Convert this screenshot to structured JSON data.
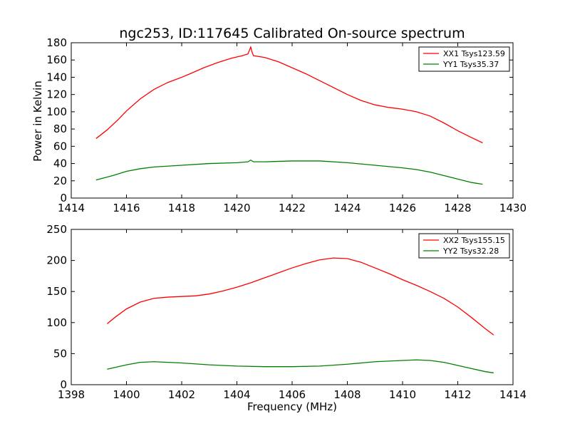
{
  "figure": {
    "title": "ngc253, ID:117645 Calibrated On-source spectrum",
    "ylabel": "Power in Kelvin",
    "xlabel": "Frequency (MHz)"
  },
  "colors": {
    "XX": "#ff0000",
    "YY": "#008000",
    "axis": "#000000"
  },
  "chart_data": [
    {
      "type": "line",
      "title": "ngc253, ID:117645 Calibrated On-source spectrum",
      "xlabel": "",
      "ylabel": "Power in Kelvin",
      "xlim": [
        1414,
        1430
      ],
      "ylim": [
        0,
        180
      ],
      "xticks": [
        1414,
        1416,
        1418,
        1420,
        1422,
        1424,
        1426,
        1428,
        1430
      ],
      "yticks": [
        0,
        20,
        40,
        60,
        80,
        100,
        120,
        140,
        160,
        180
      ],
      "grid": false,
      "legend": "top-right",
      "series": [
        {
          "name": "XX1 Tsys123.59",
          "color": "#ff0000",
          "x": [
            1414.9,
            1415.3,
            1415.7,
            1416.0,
            1416.5,
            1417.0,
            1417.5,
            1418.0,
            1418.3,
            1418.8,
            1419.3,
            1419.8,
            1420.2,
            1420.4,
            1420.5,
            1420.55,
            1420.6,
            1421.0,
            1421.5,
            1422.0,
            1422.5,
            1423.0,
            1423.5,
            1424.0,
            1424.5,
            1425.0,
            1425.5,
            1426.0,
            1426.5,
            1427.0,
            1427.5,
            1428.0,
            1428.5,
            1428.9
          ],
          "y": [
            69,
            79,
            91,
            101,
            115,
            126,
            134,
            140,
            144,
            151,
            157,
            162,
            165,
            167,
            175,
            169,
            165,
            163,
            158,
            151,
            144,
            136,
            128,
            120,
            113,
            108,
            105,
            103,
            100,
            95,
            87,
            78,
            70,
            64
          ]
        },
        {
          "name": "YY1 Tsys35.37",
          "color": "#008000",
          "x": [
            1414.9,
            1415.5,
            1416.0,
            1416.5,
            1417.0,
            1418.0,
            1419.0,
            1420.0,
            1420.4,
            1420.5,
            1420.6,
            1421.0,
            1422.0,
            1423.0,
            1424.0,
            1425.0,
            1426.0,
            1426.5,
            1427.0,
            1427.5,
            1428.0,
            1428.5,
            1428.9
          ],
          "y": [
            21,
            26,
            31,
            34,
            36,
            38,
            40,
            41,
            42,
            44,
            42,
            42,
            43,
            43,
            41,
            38,
            35,
            33,
            30,
            26,
            22,
            18,
            16
          ]
        }
      ]
    },
    {
      "type": "line",
      "title": "",
      "xlabel": "Frequency (MHz)",
      "ylabel": "",
      "xlim": [
        1398,
        1414
      ],
      "ylim": [
        0,
        250
      ],
      "xticks": [
        1398,
        1400,
        1402,
        1404,
        1406,
        1408,
        1410,
        1412,
        1414
      ],
      "yticks": [
        0,
        50,
        100,
        150,
        200,
        250
      ],
      "grid": false,
      "legend": "top-right",
      "series": [
        {
          "name": "XX2 Tsys155.15",
          "color": "#ff0000",
          "x": [
            1399.3,
            1399.6,
            1400.0,
            1400.5,
            1401.0,
            1401.5,
            1402.0,
            1402.5,
            1403.0,
            1403.5,
            1404.0,
            1404.5,
            1405.0,
            1405.5,
            1406.0,
            1406.5,
            1407.0,
            1407.5,
            1408.0,
            1408.5,
            1409.0,
            1409.5,
            1410.0,
            1410.5,
            1411.0,
            1411.5,
            1412.0,
            1412.5,
            1413.0,
            1413.3
          ],
          "y": [
            98,
            109,
            122,
            133,
            139,
            141,
            142,
            143,
            146,
            151,
            157,
            164,
            172,
            180,
            188,
            195,
            201,
            204,
            203,
            197,
            188,
            179,
            169,
            160,
            150,
            139,
            125,
            108,
            90,
            80
          ]
        },
        {
          "name": "YY2 Tsys32.28",
          "color": "#008000",
          "x": [
            1399.3,
            1400.0,
            1400.5,
            1401.0,
            1401.5,
            1402.0,
            1403.0,
            1404.0,
            1405.0,
            1406.0,
            1407.0,
            1408.0,
            1409.0,
            1410.0,
            1410.5,
            1411.0,
            1411.5,
            1412.0,
            1412.5,
            1413.0,
            1413.3
          ],
          "y": [
            25,
            32,
            36,
            37,
            36,
            35,
            32,
            30,
            29,
            29,
            30,
            33,
            37,
            39,
            40,
            39,
            36,
            31,
            26,
            21,
            19
          ]
        }
      ]
    }
  ]
}
